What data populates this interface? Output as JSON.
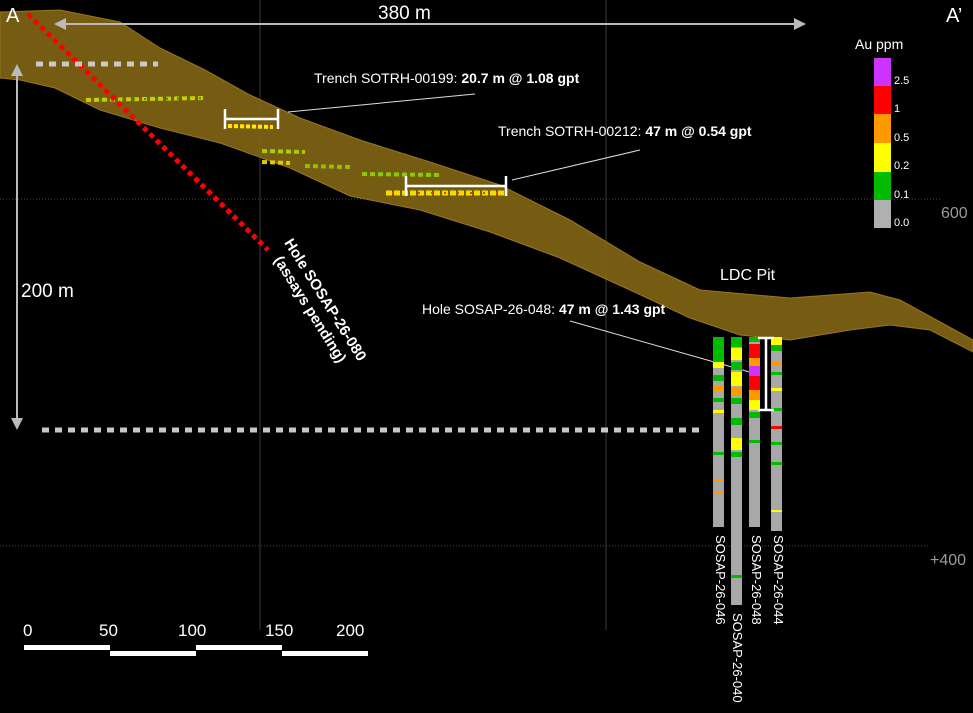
{
  "section": {
    "start_label": "A",
    "end_label": "A’"
  },
  "dimensions": {
    "horizontal": "380 m",
    "vertical": "200 m"
  },
  "elevation_labels": {
    "upper": "600",
    "lower": "+400"
  },
  "annotations": {
    "trench_199": {
      "name": "Trench SOTRH-00199:",
      "result": "20.7 m @ 1.08 gpt"
    },
    "trench_212": {
      "name": "Trench SOTRH-00212:",
      "result": "47 m @ 0.54 gpt"
    },
    "hole_048": {
      "name": "Hole SOSAP-26-048:",
      "result": "47 m @ 1.43 gpt"
    },
    "pit": "LDC Pit",
    "hole_080_name": "Hole SOSAP-26-080",
    "hole_080_status": "(assays pending)"
  },
  "legend": {
    "title": "Au ppm",
    "classes": [
      {
        "value": "2.5",
        "color": "#cc33ff"
      },
      {
        "value": "1",
        "color": "#ff0000"
      },
      {
        "value": "0.5",
        "color": "#ff9900"
      },
      {
        "value": "0.2",
        "color": "#ffff00"
      },
      {
        "value": "0.1",
        "color": "#00bb00"
      },
      {
        "value": "0.0",
        "color": "#b0b0b0"
      }
    ]
  },
  "scale_bar": {
    "ticks": [
      "0",
      "50",
      "100",
      "150",
      "200"
    ]
  },
  "drill_holes": [
    {
      "name": "SOSAP-26-046"
    },
    {
      "name": "SOSAP-26-040"
    },
    {
      "name": "SOSAP-26-048"
    },
    {
      "name": "SOSAP-26-044"
    }
  ],
  "colors": {
    "topography": "#8a6a14",
    "pending_hole": "#ff0000",
    "background": "#000000"
  }
}
